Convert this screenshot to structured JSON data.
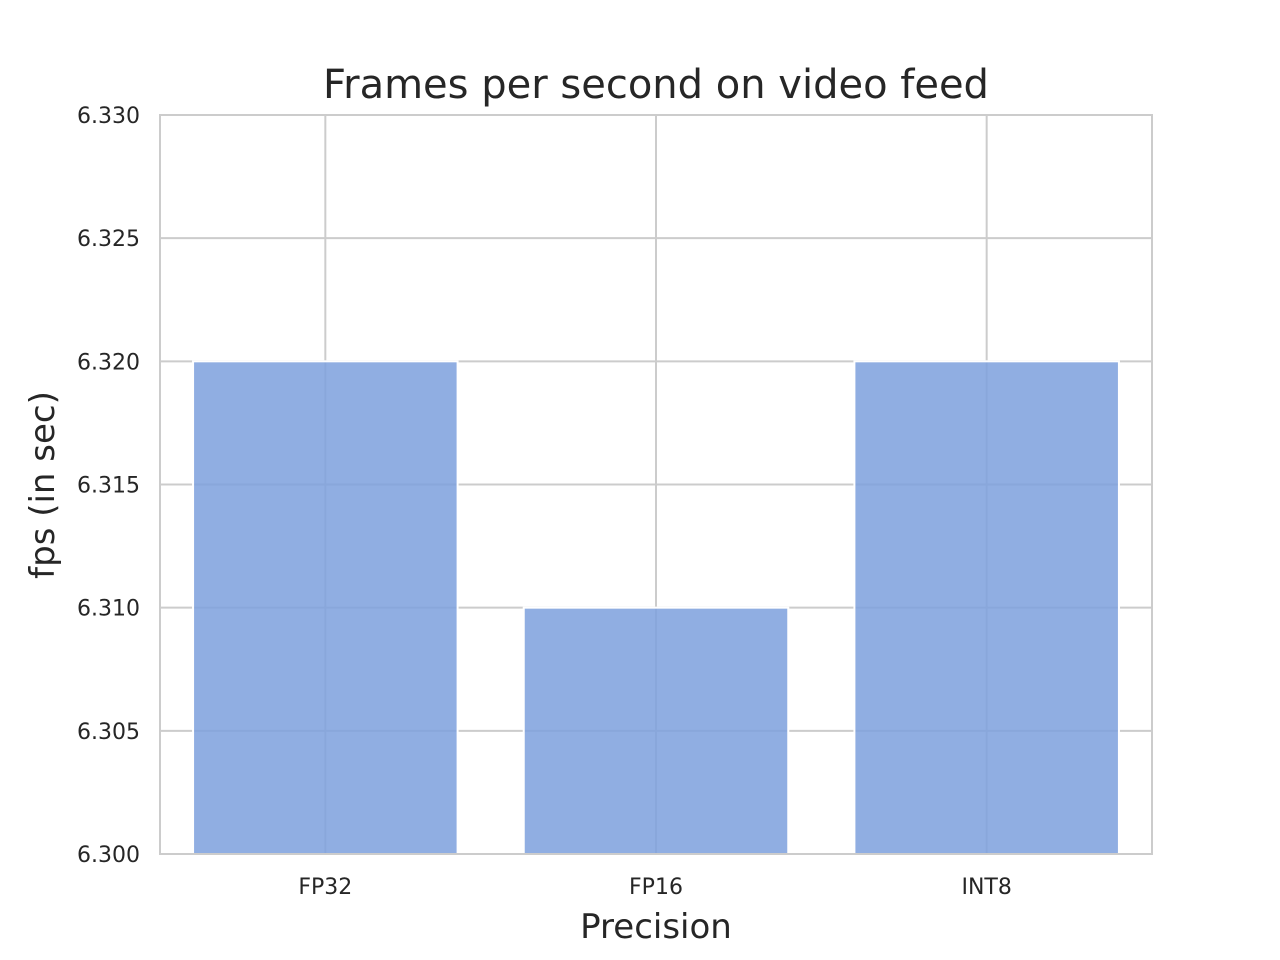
{
  "chart_data": {
    "type": "bar",
    "title": "Frames per second on video feed",
    "xlabel": "Precision",
    "ylabel": "fps (in sec)",
    "categories": [
      "FP32",
      "FP16",
      "INT8"
    ],
    "values": [
      6.32,
      6.31,
      6.32
    ],
    "ylim": [
      6.3,
      6.33
    ],
    "yticks": [
      "6.300",
      "6.305",
      "6.310",
      "6.315",
      "6.320",
      "6.325",
      "6.330"
    ],
    "grid": true,
    "bar_color": "#7da0dd"
  }
}
